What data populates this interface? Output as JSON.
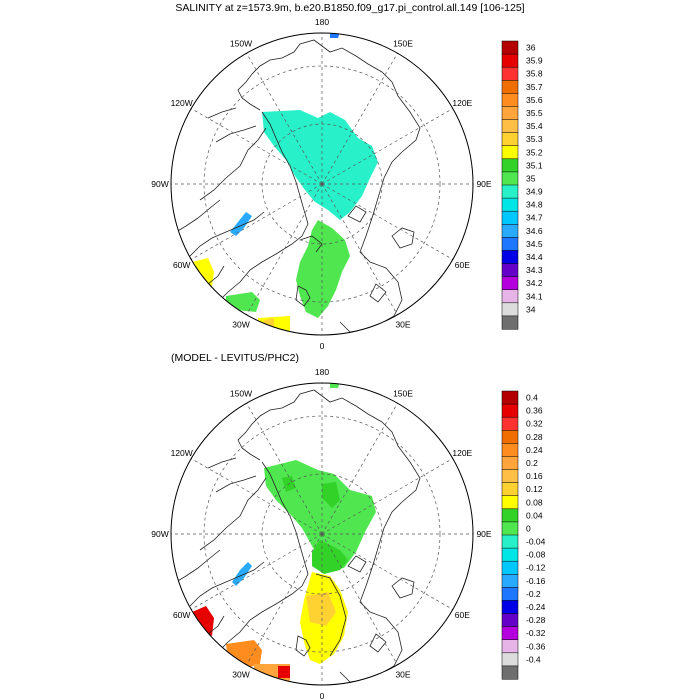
{
  "titles": {
    "top": "SALINITY at z=1573.9m, b.e20.B1850.f09_g17.pi_control.all.149 [106-125]",
    "bottom": "(MODEL - LEVITUS/PHC2)"
  },
  "lon_labels": [
    {
      "text": "180",
      "deg": 180
    },
    {
      "text": "150E",
      "deg": 150
    },
    {
      "text": "120E",
      "deg": 120
    },
    {
      "text": "90E",
      "deg": 90
    },
    {
      "text": "60E",
      "deg": 60
    },
    {
      "text": "30E",
      "deg": 30
    },
    {
      "text": "0",
      "deg": 0
    },
    {
      "text": "30W",
      "deg": -30
    },
    {
      "text": "60W",
      "deg": -60
    },
    {
      "text": "90W",
      "deg": -90
    },
    {
      "text": "120W",
      "deg": -120
    },
    {
      "text": "150W",
      "deg": -150
    }
  ],
  "colorbars": {
    "top": {
      "labels": [
        "36",
        "35.9",
        "35.8",
        "35.7",
        "35.6",
        "35.5",
        "35.4",
        "35.3",
        "35.2",
        "35.1",
        "35",
        "34.9",
        "34.8",
        "34.7",
        "34.6",
        "34.5",
        "34.4",
        "34.3",
        "34.2",
        "34.1",
        "34"
      ],
      "colors": [
        "#b40000",
        "#e60000",
        "#ff3232",
        "#f06e00",
        "#ff8c1e",
        "#ffa53c",
        "#ffbe46",
        "#ffd232",
        "#ffff00",
        "#32d228",
        "#50e650",
        "#28f0c8",
        "#00e6e6",
        "#00c8ff",
        "#28aaff",
        "#1e78ff",
        "#0000e6",
        "#6400c8",
        "#b400dc",
        "#e6b4e6",
        "#dcdcdc",
        "#6e6e6e"
      ]
    },
    "bottom": {
      "labels": [
        "0.4",
        "0.36",
        "0.32",
        "0.28",
        "0.24",
        "0.2",
        "0.16",
        "0.12",
        "0.08",
        "0.04",
        "0",
        "-0.04",
        "-0.08",
        "-0.12",
        "-0.16",
        "-0.2",
        "-0.24",
        "-0.28",
        "-0.32",
        "-0.36",
        "-0.4"
      ],
      "colors": [
        "#b40000",
        "#e60000",
        "#ff3232",
        "#f06e00",
        "#ff8c1e",
        "#ffa53c",
        "#ffbe46",
        "#ffd232",
        "#ffff00",
        "#32d228",
        "#50e650",
        "#28f0c8",
        "#00e6e6",
        "#00c8ff",
        "#28aaff",
        "#1e78ff",
        "#0000e6",
        "#6400c8",
        "#b400dc",
        "#e6b4e6",
        "#dcdcdc",
        "#6e6e6e"
      ]
    }
  },
  "fields": {
    "top": [
      {
        "region": "central-arctic",
        "color": "#28f0c8"
      },
      {
        "region": "fram-norwegian",
        "color": "#50e650"
      },
      {
        "region": "baffin-bay",
        "color": "#28aaff"
      },
      {
        "region": "labrador",
        "color": "#ffff00"
      },
      {
        "region": "greenland-sea-south",
        "color": "#50e650"
      },
      {
        "region": "north-atlantic",
        "color": "#ffff00"
      },
      {
        "region": "bering-strait",
        "color": "#1e78ff"
      }
    ],
    "bottom": [
      {
        "region": "central-arctic",
        "color": "#50e650"
      },
      {
        "region": "fram-strait",
        "color": "#32d228"
      },
      {
        "region": "norwegian-sea",
        "color": "#ffff00"
      },
      {
        "region": "baffin-bay",
        "color": "#28aaff"
      },
      {
        "region": "labrador",
        "color": "#e60000"
      },
      {
        "region": "north-atlantic",
        "color": "#ff8c1e"
      },
      {
        "region": "bering-strait",
        "color": "#50e650"
      }
    ]
  }
}
